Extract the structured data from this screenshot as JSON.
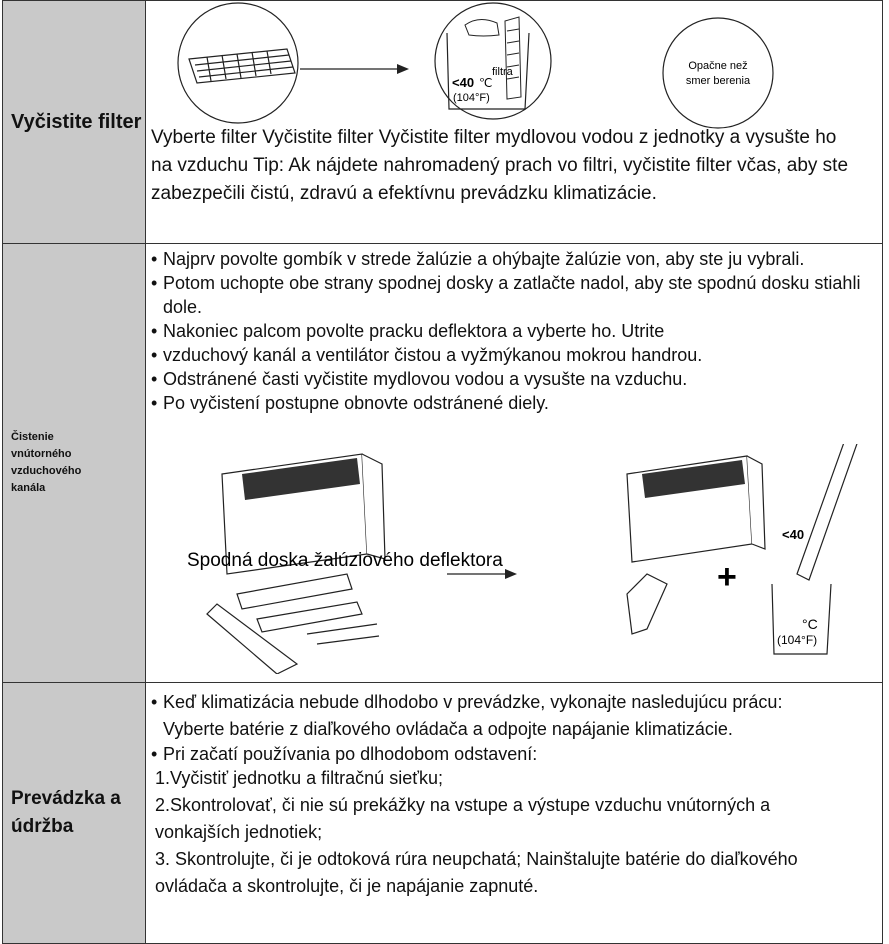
{
  "sections": [
    {
      "header": "Vyčistite filter",
      "illustration": {
        "temp": "<40",
        "celsius": "℃",
        "filter_label": "filtra",
        "fahrenheit": "(104°F)",
        "direction_note": [
          "Opačne než",
          "smer berenia"
        ]
      },
      "text": "Vyberte filter Vyčistite filter Vyčistite filter mydlovou vodou z jednotky a vysušte ho na vzduchu Tip: Ak nájdete nahromadený prach vo filtri, vyčistite filter včas, aby ste zabezpečili čistú, zdravú a efektívnu prevádzku klimatizácie."
    },
    {
      "header": "Čistenie vnútorného vzduchového kanála",
      "bullets": [
        "Najprv povolte gombík v strede žalúzie a ohýbajte žalúzie von, aby ste ju vybrali.",
        "Potom uchopte obe strany spodnej dosky a zatlačte nadol, aby ste spodnú dosku stiahli dole.",
        "Nakoniec palcom povolte pracku deflektora a vyberte ho. Utrite",
        "vzduchový kanál a ventilátor čistou a vyžmýkanou mokrou handrou.",
        "Odstránené časti vyčistite mydlovou vodou a vysušte na vzduchu.",
        "Po vyčistení postupne obnovte odstránené diely."
      ],
      "illustration": {
        "caption": "Spodná doska žalúziového deflektora",
        "plus": "+",
        "temp": "<40",
        "celsius": "°C",
        "fahrenheit": "(104°F)"
      }
    },
    {
      "header": "Prevádzka a údržba",
      "bullets": [
        "Keď klimatizácia nebude dlhodobo v prevádzke, vykonajte nasledujúcu prácu: Vyberte batérie z diaľkového ovládača a odpojte napájanie klimatizácie.",
        "Pri začatí používania po dlhodobom odstavení:"
      ],
      "steps": [
        "1.Vyčistiť jednotku a filtračnú sieťku;",
        "2.Skontrolovať, či nie sú prekážky na vstupe a výstupe vzduchu vnútorných a vonkajších jednotiek;",
        "3. Skontrolujte, či je odtoková rúra neupchatá; Nainštalujte batérie do diaľkového ovládača a skontrolujte, či je napájanie zapnuté."
      ]
    }
  ]
}
